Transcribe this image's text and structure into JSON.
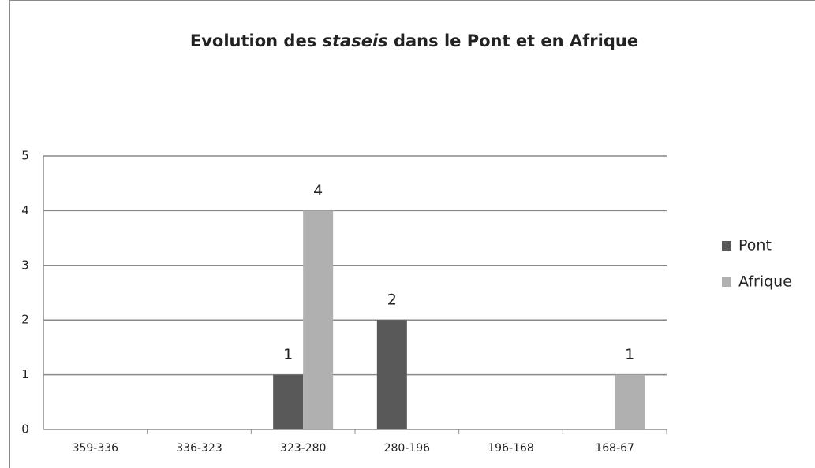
{
  "chart_data": {
    "type": "bar",
    "title": [
      {
        "text": "Evolution des "
      },
      {
        "text": "staseis",
        "style": "italic"
      },
      {
        "text": " dans le Pont et en Afrique"
      }
    ],
    "categories": [
      "359-336",
      "336-323",
      "323-280",
      "280-196",
      "196-168",
      "168-67"
    ],
    "series": [
      {
        "name": "Pont",
        "color": "#595959",
        "values": [
          0,
          0,
          1,
          2,
          0,
          0
        ]
      },
      {
        "name": "Afrique",
        "color": "#b0b0b0",
        "values": [
          0,
          0,
          4,
          0,
          0,
          1
        ]
      }
    ],
    "ylim": [
      0,
      5
    ],
    "yticks": [
      0,
      1,
      2,
      3,
      4,
      5
    ],
    "grid": true,
    "legend": "right"
  }
}
